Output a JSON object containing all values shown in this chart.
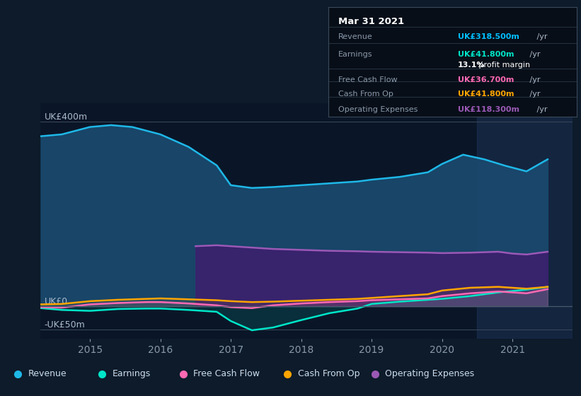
{
  "bg_color": "#0d1b2a",
  "axis_bg": "#0a1628",
  "title_box": {
    "date": "Mar 31 2021",
    "rows": [
      {
        "label": "Revenue",
        "value": "UK£318.500m",
        "unit": "/yr",
        "color": "#00bfff"
      },
      {
        "label": "Earnings",
        "value": "UK£41.800m",
        "unit": "/yr",
        "color": "#00e5c8"
      },
      {
        "label": "",
        "value": "13.1%",
        "text": " profit margin",
        "color": "#ffffff"
      },
      {
        "label": "Free Cash Flow",
        "value": "UK£36.700m",
        "unit": "/yr",
        "color": "#ff69b4"
      },
      {
        "label": "Cash From Op",
        "value": "UK£41.800m",
        "unit": "/yr",
        "color": "#ffa500"
      },
      {
        "label": "Operating Expenses",
        "value": "UK£118.300m",
        "unit": "/yr",
        "color": "#9b59b6"
      }
    ]
  },
  "ylabel_top": "UK£400m",
  "ylabel_zero": "UK£0",
  "ylabel_bottom": "-UK£50m",
  "ylim": [
    -70,
    440
  ],
  "xlim": [
    2014.3,
    2021.85
  ],
  "xticks": [
    2015,
    2016,
    2017,
    2018,
    2019,
    2020,
    2021
  ],
  "revenue": {
    "x": [
      2014.3,
      2014.6,
      2015.0,
      2015.3,
      2015.6,
      2016.0,
      2016.4,
      2016.8,
      2017.0,
      2017.3,
      2017.6,
      2018.0,
      2018.4,
      2018.8,
      2019.0,
      2019.4,
      2019.8,
      2020.0,
      2020.3,
      2020.6,
      2020.9,
      2021.2,
      2021.5
    ],
    "y": [
      368,
      372,
      388,
      392,
      388,
      372,
      345,
      305,
      262,
      256,
      258,
      262,
      266,
      270,
      274,
      280,
      290,
      308,
      328,
      318,
      304,
      292,
      318
    ],
    "color": "#1eb8e8",
    "fill_color": "#1a4a6e",
    "fill_alpha": 0.92
  },
  "earnings": {
    "x": [
      2014.3,
      2014.6,
      2015.0,
      2015.4,
      2015.8,
      2016.0,
      2016.4,
      2016.8,
      2017.0,
      2017.3,
      2017.6,
      2018.0,
      2018.4,
      2018.8,
      2019.0,
      2019.4,
      2019.8,
      2020.0,
      2020.4,
      2020.8,
      2021.2,
      2021.5
    ],
    "y": [
      -4,
      -8,
      -10,
      -6,
      -5,
      -5,
      -8,
      -12,
      -32,
      -52,
      -46,
      -30,
      -15,
      -5,
      5,
      10,
      14,
      16,
      22,
      30,
      36,
      42
    ],
    "color": "#00e5c8",
    "fill_color": "#00e5c8",
    "fill_alpha": 0.12
  },
  "free_cash_flow": {
    "x": [
      2014.3,
      2014.6,
      2015.0,
      2015.4,
      2015.8,
      2016.0,
      2016.4,
      2016.8,
      2017.0,
      2017.3,
      2017.6,
      2018.0,
      2018.4,
      2018.8,
      2019.0,
      2019.4,
      2019.8,
      2020.0,
      2020.4,
      2020.8,
      2021.2,
      2021.5
    ],
    "y": [
      -2,
      -3,
      4,
      7,
      9,
      9,
      6,
      2,
      -2,
      -4,
      2,
      6,
      9,
      11,
      13,
      15,
      17,
      22,
      28,
      32,
      28,
      37
    ],
    "color": "#ff69b4",
    "fill_color": "#ff69b4",
    "fill_alpha": 0.08
  },
  "cash_from_op": {
    "x": [
      2014.3,
      2014.6,
      2015.0,
      2015.4,
      2015.8,
      2016.0,
      2016.4,
      2016.8,
      2017.0,
      2017.3,
      2017.6,
      2018.0,
      2018.4,
      2018.8,
      2019.0,
      2019.4,
      2019.8,
      2020.0,
      2020.4,
      2020.8,
      2021.2,
      2021.5
    ],
    "y": [
      4,
      5,
      11,
      14,
      16,
      17,
      15,
      13,
      11,
      9,
      10,
      12,
      14,
      16,
      18,
      22,
      26,
      34,
      40,
      42,
      38,
      42
    ],
    "color": "#ffa500",
    "fill_color": "#ffa500",
    "fill_alpha": 0.08
  },
  "op_expenses": {
    "x": [
      2016.5,
      2016.8,
      2017.0,
      2017.3,
      2017.6,
      2018.0,
      2018.4,
      2018.8,
      2019.0,
      2019.4,
      2019.8,
      2020.0,
      2020.4,
      2020.8,
      2021.0,
      2021.2,
      2021.5
    ],
    "y": [
      130,
      132,
      130,
      127,
      124,
      122,
      120,
      119,
      118,
      117,
      116,
      115,
      116,
      118,
      114,
      112,
      118
    ],
    "color": "#9b59b6",
    "fill_color": "#3d1f6e",
    "fill_alpha": 0.88
  },
  "legend": [
    {
      "label": "Revenue",
      "color": "#1eb8e8"
    },
    {
      "label": "Earnings",
      "color": "#00e5c8"
    },
    {
      "label": "Free Cash Flow",
      "color": "#ff69b4"
    },
    {
      "label": "Cash From Op",
      "color": "#ffa500"
    },
    {
      "label": "Operating Expenses",
      "color": "#9b59b6"
    }
  ],
  "vspan_x": 2020.5,
  "hline_400": 400,
  "hline_0": 0,
  "hline_neg50": -50
}
